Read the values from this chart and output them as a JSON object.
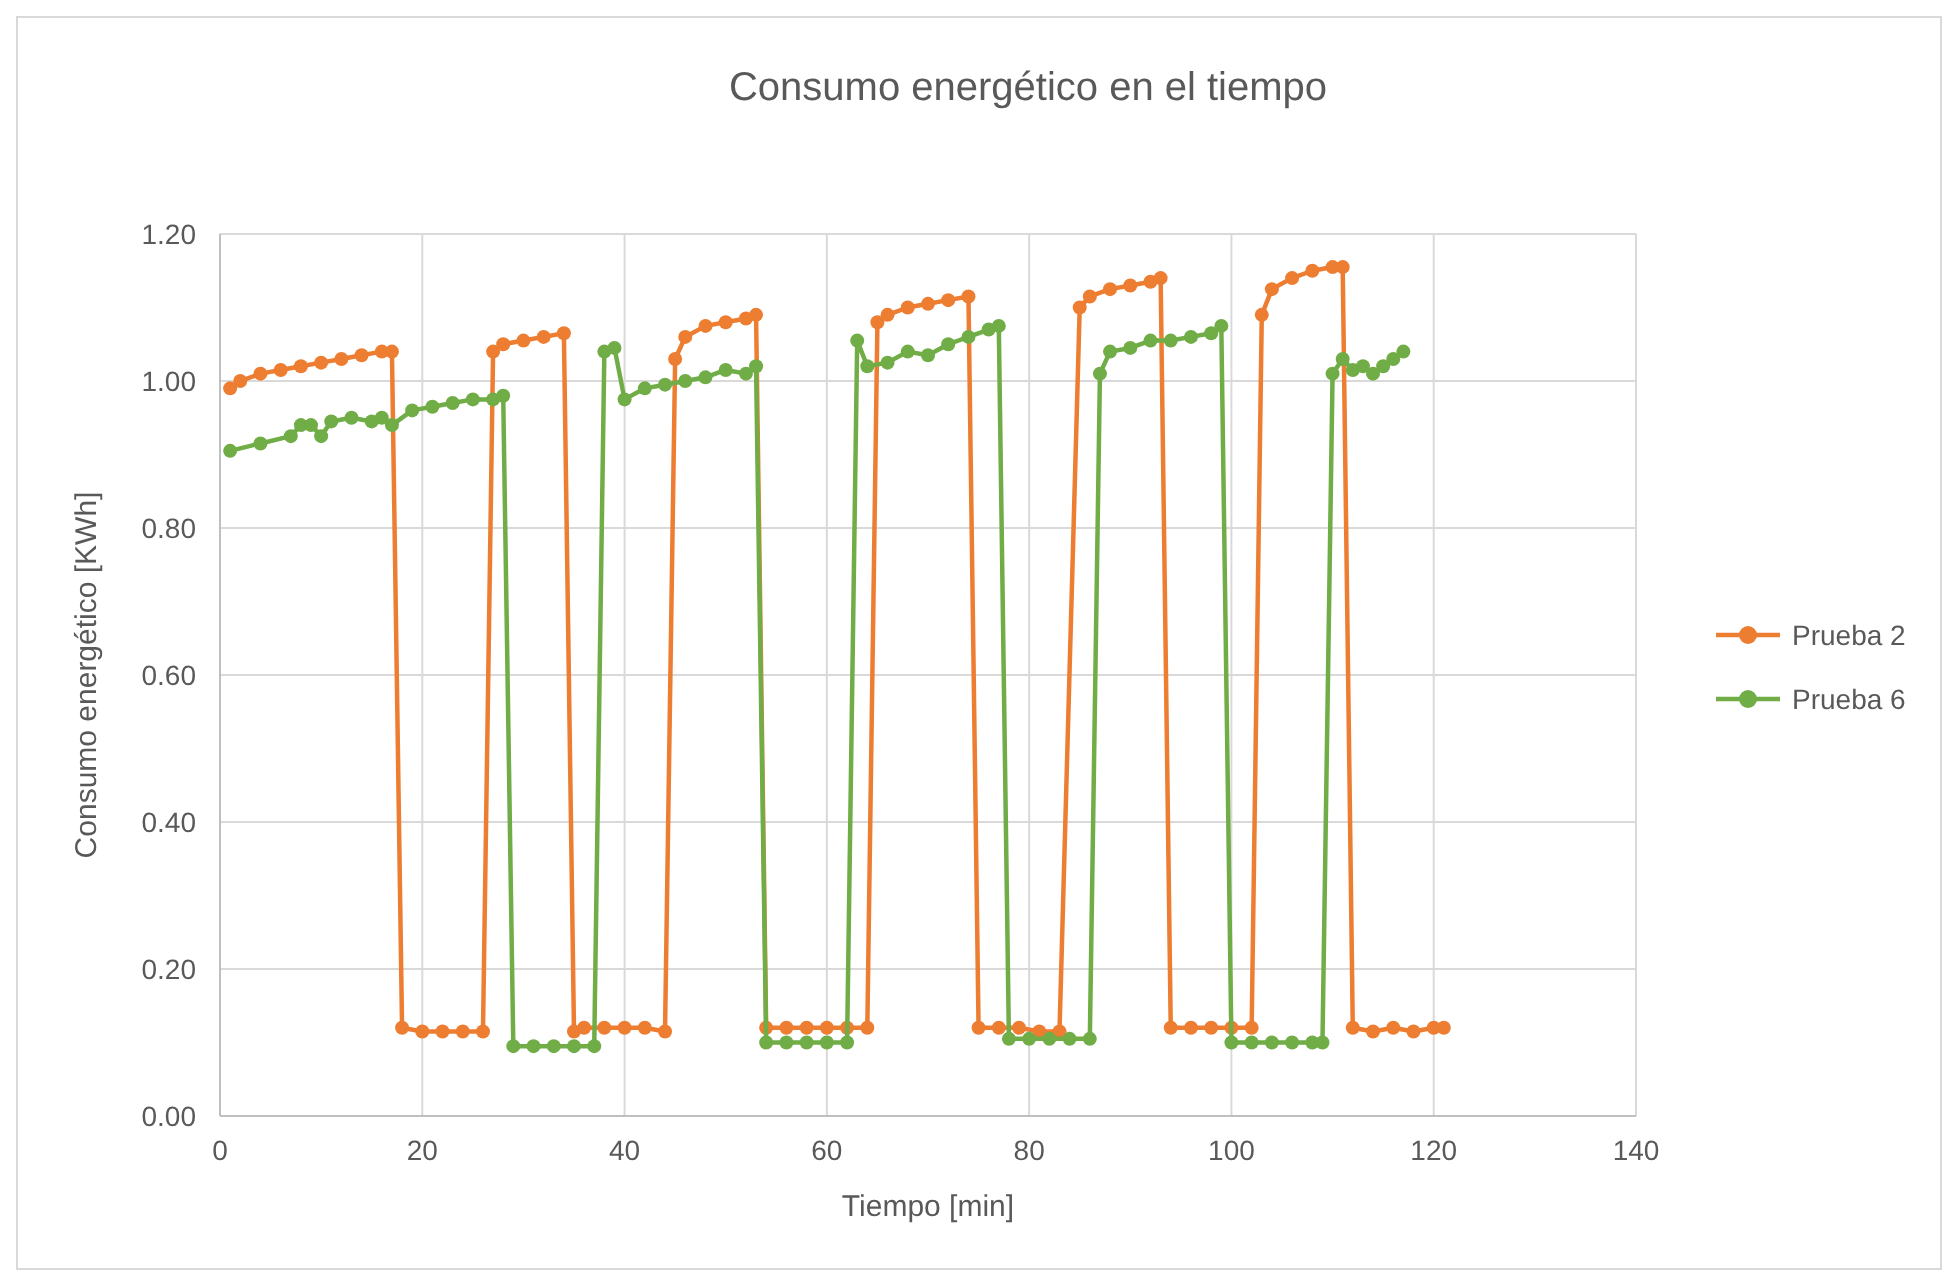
{
  "chart_data": {
    "type": "line",
    "title": "Consumo energético en el tiempo",
    "xlabel": "Tiempo [min]",
    "ylabel": "Consumo energético [KWh]",
    "xlim": [
      0,
      140
    ],
    "xticks": [
      0,
      20,
      40,
      60,
      80,
      100,
      120,
      140
    ],
    "ylim": [
      0,
      1.2
    ],
    "yticks": [
      {
        "value": 0,
        "label": "0.00"
      },
      {
        "value": 0.2,
        "label": "0.20"
      },
      {
        "value": 0.4,
        "label": "0.40"
      },
      {
        "value": 0.6,
        "label": "0.60"
      },
      {
        "value": 0.8,
        "label": "0.80"
      },
      {
        "value": 1,
        "label": "1.00"
      },
      {
        "value": 1.2,
        "label": "1.20"
      }
    ],
    "grid": true,
    "legend": "right",
    "marker": "circle",
    "line_style": "solid",
    "series": [
      {
        "name": "Prueba 2",
        "color": "#ed7d31",
        "x": [
          1,
          2,
          4,
          6,
          8,
          10,
          12,
          14,
          16,
          17,
          18,
          20,
          22,
          24,
          26,
          27,
          28,
          30,
          32,
          34,
          35,
          36,
          38,
          40,
          42,
          44,
          45,
          46,
          48,
          50,
          52,
          53,
          54,
          56,
          58,
          60,
          62,
          64,
          65,
          66,
          68,
          70,
          72,
          74,
          75,
          77,
          79,
          81,
          83,
          85,
          86,
          88,
          90,
          92,
          93,
          94,
          96,
          98,
          100,
          102,
          103,
          104,
          106,
          108,
          110,
          111,
          112,
          114,
          116,
          118,
          120,
          121
        ],
        "values": [
          0.99,
          1.0,
          1.01,
          1.015,
          1.02,
          1.025,
          1.03,
          1.035,
          1.04,
          1.04,
          0.12,
          0.115,
          0.115,
          0.115,
          0.115,
          1.04,
          1.05,
          1.055,
          1.06,
          1.065,
          0.115,
          0.12,
          0.12,
          0.12,
          0.12,
          0.115,
          1.03,
          1.06,
          1.075,
          1.08,
          1.085,
          1.09,
          0.12,
          0.12,
          0.12,
          0.12,
          0.12,
          0.12,
          1.08,
          1.09,
          1.1,
          1.105,
          1.11,
          1.115,
          0.12,
          0.12,
          0.12,
          0.115,
          0.115,
          1.1,
          1.115,
          1.125,
          1.13,
          1.135,
          1.14,
          0.12,
          0.12,
          0.12,
          0.12,
          0.12,
          1.09,
          1.125,
          1.14,
          1.15,
          1.155,
          1.155,
          0.12,
          0.115,
          0.12,
          0.115,
          0.12,
          0.12
        ]
      },
      {
        "name": "Prueba 6",
        "color": "#70ad47",
        "x": [
          1,
          4,
          7,
          8,
          9,
          10,
          11,
          13,
          15,
          16,
          17,
          19,
          21,
          23,
          25,
          27,
          28,
          29,
          31,
          33,
          35,
          37,
          38,
          39,
          40,
          42,
          44,
          46,
          48,
          50,
          52,
          53,
          54,
          56,
          58,
          60,
          62,
          63,
          64,
          66,
          68,
          70,
          72,
          74,
          76,
          77,
          78,
          80,
          82,
          84,
          86,
          87,
          88,
          90,
          92,
          94,
          96,
          98,
          99,
          100,
          102,
          104,
          106,
          108,
          109,
          110,
          111,
          112,
          113,
          114,
          115,
          116,
          117
        ],
        "values": [
          0.905,
          0.915,
          0.925,
          0.94,
          0.94,
          0.925,
          0.945,
          0.95,
          0.945,
          0.95,
          0.94,
          0.96,
          0.965,
          0.97,
          0.975,
          0.975,
          0.98,
          0.095,
          0.095,
          0.095,
          0.095,
          0.095,
          1.04,
          1.045,
          0.975,
          0.99,
          0.995,
          1.0,
          1.005,
          1.015,
          1.01,
          1.02,
          0.1,
          0.1,
          0.1,
          0.1,
          0.1,
          1.055,
          1.02,
          1.025,
          1.04,
          1.035,
          1.05,
          1.06,
          1.07,
          1.075,
          0.105,
          0.105,
          0.105,
          0.105,
          0.105,
          1.01,
          1.04,
          1.045,
          1.055,
          1.055,
          1.06,
          1.065,
          1.075,
          0.1,
          0.1,
          0.1,
          0.1,
          0.1,
          0.1,
          1.01,
          1.03,
          1.015,
          1.02,
          1.01,
          1.02,
          1.03,
          1.04
        ]
      }
    ]
  }
}
